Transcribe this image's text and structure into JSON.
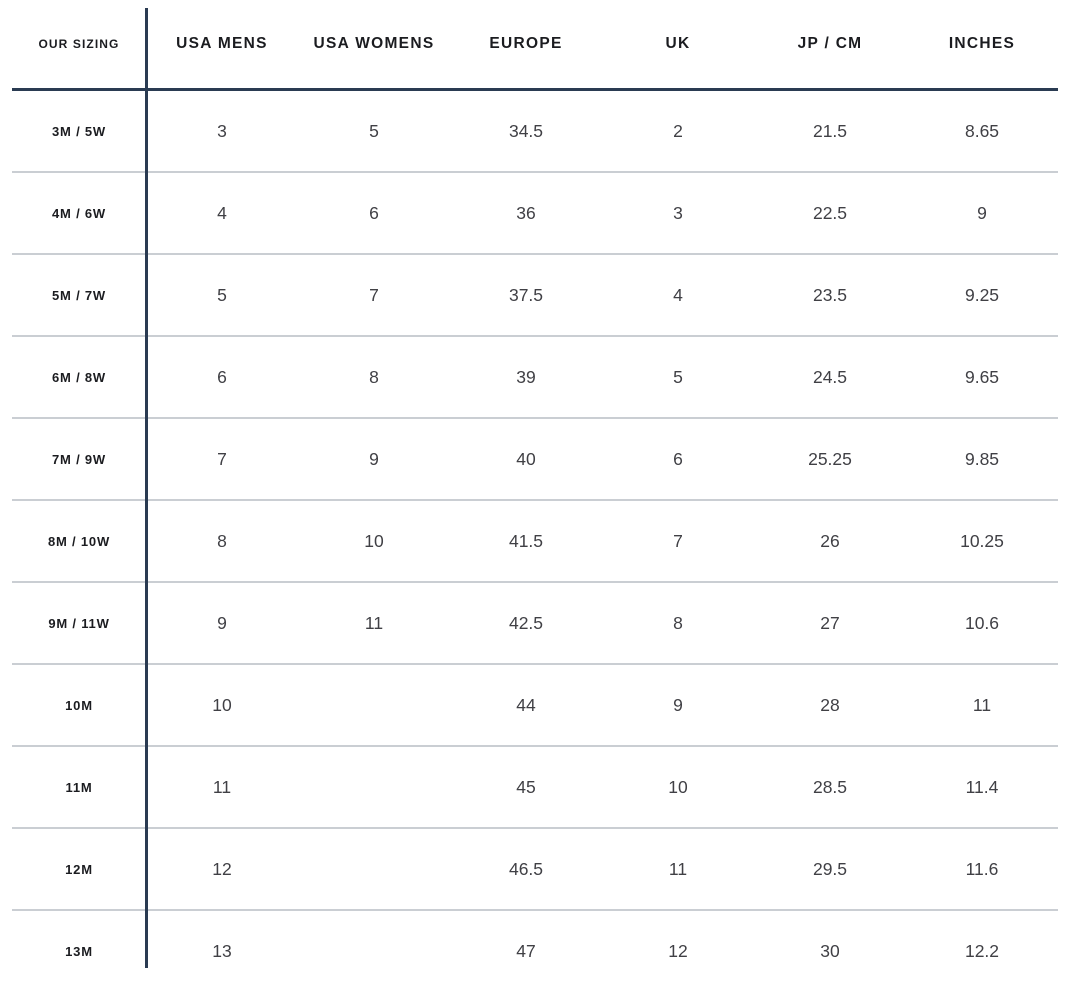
{
  "table": {
    "columns": [
      "OUR SIZING",
      "USA MENS",
      "USA WOMENS",
      "EUROPE",
      "UK",
      "JP / CM",
      "INCHES"
    ],
    "rows": [
      {
        "label": "3M / 5W",
        "values": [
          "3",
          "5",
          "34.5",
          "2",
          "21.5",
          "8.65"
        ]
      },
      {
        "label": "4M / 6W",
        "values": [
          "4",
          "6",
          "36",
          "3",
          "22.5",
          "9"
        ]
      },
      {
        "label": "5M / 7W",
        "values": [
          "5",
          "7",
          "37.5",
          "4",
          "23.5",
          "9.25"
        ]
      },
      {
        "label": "6M / 8W",
        "values": [
          "6",
          "8",
          "39",
          "5",
          "24.5",
          "9.65"
        ]
      },
      {
        "label": "7M / 9W",
        "values": [
          "7",
          "9",
          "40",
          "6",
          "25.25",
          "9.85"
        ]
      },
      {
        "label": "8M / 10W",
        "values": [
          "8",
          "10",
          "41.5",
          "7",
          "26",
          "10.25"
        ]
      },
      {
        "label": "9M / 11W",
        "values": [
          "9",
          "11",
          "42.5",
          "8",
          "27",
          "10.6"
        ]
      },
      {
        "label": "10M",
        "values": [
          "10",
          "",
          "44",
          "9",
          "28",
          "11"
        ]
      },
      {
        "label": "11M",
        "values": [
          "11",
          "",
          "45",
          "10",
          "28.5",
          "11.4"
        ]
      },
      {
        "label": "12M",
        "values": [
          "12",
          "",
          "46.5",
          "11",
          "29.5",
          "11.6"
        ]
      },
      {
        "label": "13M",
        "values": [
          "13",
          "",
          "47",
          "12",
          "30",
          "12.2"
        ]
      }
    ],
    "colors": {
      "divider_navy": "#2a3b52",
      "separator_gray": "#caced3",
      "header_text": "#1b1c20",
      "value_text": "#404045"
    }
  }
}
